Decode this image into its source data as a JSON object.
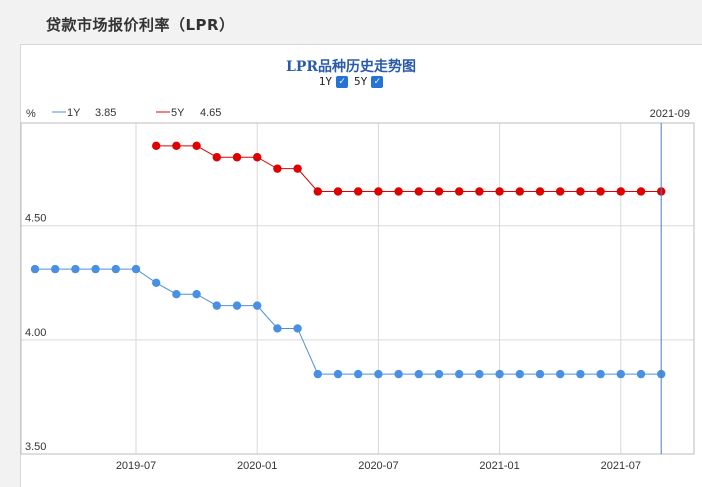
{
  "page": {
    "title": "贷款市场报价利率（LPR）"
  },
  "chart_data": {
    "type": "line",
    "title": "LPR品种历史走势图",
    "toggles": [
      {
        "label": "1Y",
        "checked": true
      },
      {
        "label": "5Y",
        "checked": true
      }
    ],
    "y_unit": "%",
    "cursor_date": "2021-09",
    "ylim": [
      3.5,
      4.95
    ],
    "yticks": [
      "3.50",
      "4.00",
      "4.50"
    ],
    "xticks": [
      "2019-07",
      "2020-01",
      "2020-07",
      "2021-01",
      "2021-07"
    ],
    "grid": true,
    "legend_position": "top-left",
    "x": [
      "2019-02",
      "2019-03",
      "2019-04",
      "2019-05",
      "2019-06",
      "2019-07",
      "2019-08",
      "2019-09",
      "2019-10",
      "2019-11",
      "2019-12",
      "2020-01",
      "2020-02",
      "2020-03",
      "2020-04",
      "2020-05",
      "2020-06",
      "2020-07",
      "2020-08",
      "2020-09",
      "2020-10",
      "2020-11",
      "2020-12",
      "2021-01",
      "2021-02",
      "2021-03",
      "2021-04",
      "2021-05",
      "2021-06",
      "2021-07",
      "2021-08",
      "2021-09"
    ],
    "series": [
      {
        "name": "1Y",
        "current": "3.85",
        "color": "#4a90e2",
        "values": [
          4.31,
          4.31,
          4.31,
          4.31,
          4.31,
          4.31,
          4.25,
          4.2,
          4.2,
          4.15,
          4.15,
          4.15,
          4.05,
          4.05,
          3.85,
          3.85,
          3.85,
          3.85,
          3.85,
          3.85,
          3.85,
          3.85,
          3.85,
          3.85,
          3.85,
          3.85,
          3.85,
          3.85,
          3.85,
          3.85,
          3.85,
          3.85
        ]
      },
      {
        "name": "5Y",
        "current": "4.65",
        "color": "#e00000",
        "values": [
          null,
          null,
          null,
          null,
          null,
          null,
          4.85,
          4.85,
          4.85,
          4.8,
          4.8,
          4.8,
          4.75,
          4.75,
          4.65,
          4.65,
          4.65,
          4.65,
          4.65,
          4.65,
          4.65,
          4.65,
          4.65,
          4.65,
          4.65,
          4.65,
          4.65,
          4.65,
          4.65,
          4.65,
          4.65,
          4.65
        ]
      }
    ]
  }
}
